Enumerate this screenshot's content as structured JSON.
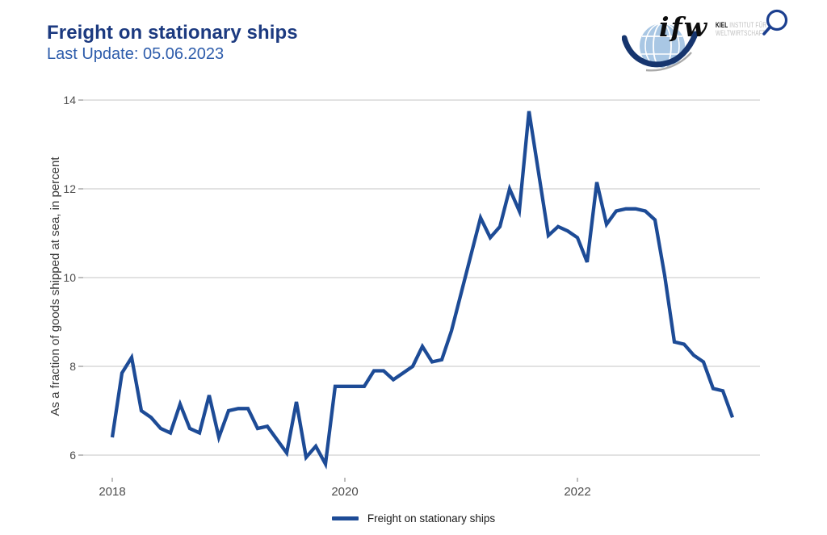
{
  "header": {
    "title": "Freight on stationary ships",
    "subtitle": "Last Update: 05.06.2023"
  },
  "logo": {
    "acronym": "ifw",
    "org_bold": "KIEL",
    "org_line1": "INSTITUT FÜR",
    "org_line2": "WELTWIRTSCHAFT"
  },
  "chart_data": {
    "type": "line",
    "title": "Freight on stationary ships",
    "ylabel": "As a fraction of goods shipped at sea, in percent",
    "xlabel": "",
    "y_ticks": [
      6,
      8,
      10,
      12,
      14
    ],
    "x_ticks": [
      2018,
      2020,
      2022
    ],
    "ylim": [
      5.5,
      14.3
    ],
    "grid": "horizontal",
    "legend_position": "bottom",
    "line_color": "#1d4b96",
    "series": [
      {
        "name": "Freight on stationary ships",
        "x": [
          "2018-01",
          "2018-02",
          "2018-03",
          "2018-04",
          "2018-05",
          "2018-06",
          "2018-07",
          "2018-08",
          "2018-09",
          "2018-10",
          "2018-11",
          "2018-12",
          "2019-01",
          "2019-02",
          "2019-03",
          "2019-04",
          "2019-05",
          "2019-06",
          "2019-07",
          "2019-08",
          "2019-09",
          "2019-10",
          "2019-11",
          "2019-12",
          "2020-01",
          "2020-02",
          "2020-03",
          "2020-04",
          "2020-05",
          "2020-06",
          "2020-07",
          "2020-08",
          "2020-09",
          "2020-10",
          "2020-11",
          "2020-12",
          "2021-01",
          "2021-02",
          "2021-03",
          "2021-04",
          "2021-05",
          "2021-06",
          "2021-07",
          "2021-08",
          "2021-09",
          "2021-10",
          "2021-11",
          "2021-12",
          "2022-01",
          "2022-02",
          "2022-03",
          "2022-04",
          "2022-05",
          "2022-06",
          "2022-07",
          "2022-08",
          "2022-09",
          "2022-10",
          "2022-11",
          "2022-12",
          "2023-01",
          "2023-02",
          "2023-03",
          "2023-04",
          "2023-05"
        ],
        "values": [
          6.4,
          7.85,
          8.2,
          7.0,
          6.85,
          6.6,
          6.5,
          7.15,
          6.6,
          6.5,
          7.35,
          6.4,
          7.0,
          7.05,
          7.05,
          6.6,
          6.65,
          6.35,
          6.05,
          7.2,
          5.95,
          6.2,
          5.8,
          7.55,
          7.55,
          7.55,
          7.55,
          7.9,
          7.9,
          7.7,
          7.85,
          8.0,
          8.45,
          8.1,
          8.15,
          8.8,
          9.65,
          10.5,
          11.35,
          10.9,
          11.15,
          12.0,
          11.5,
          13.75,
          12.35,
          10.95,
          11.15,
          11.05,
          10.9,
          10.35,
          12.15,
          11.2,
          11.5,
          11.55,
          11.55,
          11.5,
          11.3,
          10.05,
          8.55,
          8.5,
          8.25,
          8.1,
          7.5,
          7.45,
          6.85
        ]
      }
    ],
    "legend": {
      "label": "Freight on stationary ships"
    }
  }
}
